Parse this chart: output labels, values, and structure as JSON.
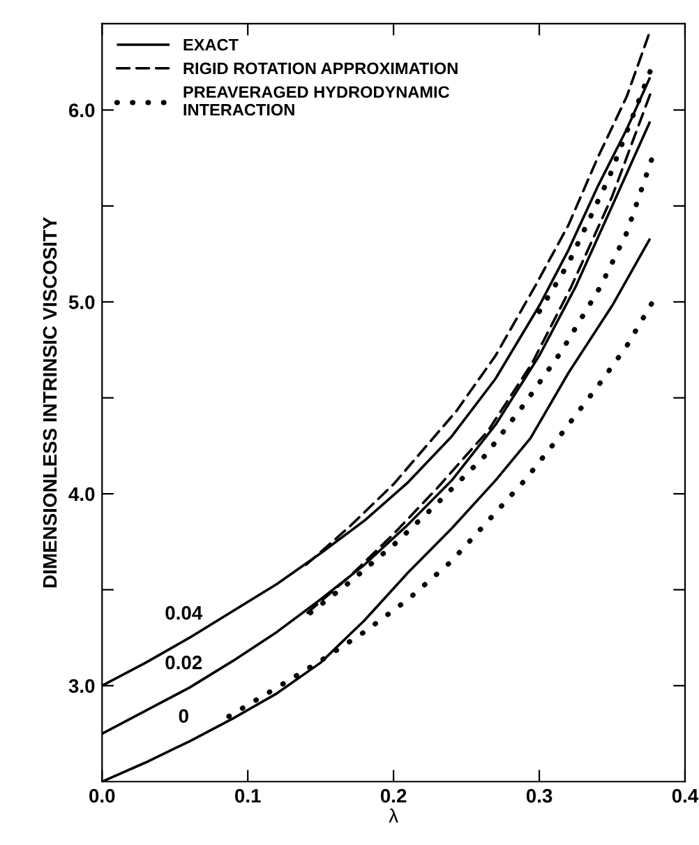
{
  "chart_data": {
    "type": "line",
    "xlabel": "λ",
    "ylabel": "DIMENSIONLESS INTRINSIC VISCOSITY",
    "xlim": [
      0.0,
      0.4
    ],
    "ylim": [
      2.5,
      6.45
    ],
    "xticks": [
      {
        "value": 0.0,
        "label": "0.0"
      },
      0.1,
      0.2,
      0.3,
      0.4
    ],
    "yticks": [
      {
        "value": 3.0,
        "label": "3.0"
      },
      {
        "value": 3.5,
        "label": null
      },
      {
        "value": 4.0,
        "label": "4.0"
      },
      {
        "value": 4.5,
        "label": null
      },
      {
        "value": 5.0,
        "label": "5.0"
      },
      {
        "value": 5.5,
        "label": null
      },
      {
        "value": 6.0,
        "label": "6.0"
      }
    ],
    "grid": false,
    "legend": "top left",
    "marker": "none",
    "series": [
      {
        "name": "EXACT",
        "color": "#000000",
        "line_style": "solid",
        "x": [
          0.0,
          0.03,
          0.06,
          0.09,
          0.12,
          0.15,
          0.18,
          0.21,
          0.24,
          0.27,
          0.3,
          0.32,
          0.34,
          0.36,
          0.376
        ],
        "values": [
          3.0,
          3.12,
          3.25,
          3.39,
          3.53,
          3.69,
          3.86,
          4.06,
          4.3,
          4.6,
          4.98,
          5.27,
          5.6,
          5.9,
          6.17
        ]
      },
      {
        "color": "#000000",
        "line_style": "solid",
        "x": [
          0.0,
          0.03,
          0.06,
          0.09,
          0.12,
          0.15,
          0.18,
          0.21,
          0.24,
          0.27,
          0.3,
          0.325,
          0.35,
          0.376
        ],
        "values": [
          2.75,
          2.87,
          2.99,
          3.13,
          3.28,
          3.45,
          3.63,
          3.84,
          4.07,
          4.36,
          4.72,
          5.08,
          5.5,
          5.94
        ]
      },
      {
        "color": "#000000",
        "line_style": "solid",
        "x": [
          0.0,
          0.03,
          0.06,
          0.09,
          0.12,
          0.15,
          0.18,
          0.21,
          0.24,
          0.27,
          0.294,
          0.32,
          0.35,
          0.376
        ],
        "values": [
          2.5,
          2.6,
          2.71,
          2.83,
          2.96,
          3.12,
          3.34,
          3.59,
          3.82,
          4.07,
          4.29,
          4.63,
          4.98,
          5.33
        ]
      },
      {
        "name": "RIGID ROTATION APPROXIMATION",
        "color": "#000000",
        "line_style": "dashed",
        "x": [
          0.14,
          0.17,
          0.2,
          0.243,
          0.27,
          0.297,
          0.32,
          0.34,
          0.36,
          0.375
        ],
        "values": [
          3.63,
          3.83,
          4.05,
          4.43,
          4.72,
          5.08,
          5.4,
          5.75,
          6.07,
          6.39
        ]
      },
      {
        "color": "#000000",
        "line_style": "dashed",
        "x": [
          0.141,
          0.17,
          0.2,
          0.23,
          0.265,
          0.295,
          0.322,
          0.35,
          0.376
        ],
        "values": [
          3.38,
          3.57,
          3.79,
          4.03,
          4.33,
          4.68,
          5.08,
          5.55,
          6.08
        ]
      },
      {
        "name": "PREAVERAGED HYDRODYNAMIC\nINTERACTION",
        "color": "#000000",
        "line_style": "dotted",
        "x": [
          0.3,
          0.32,
          0.348,
          0.376
        ],
        "values": [
          4.95,
          5.2,
          5.65,
          6.2
        ]
      },
      {
        "color": "#000000",
        "line_style": "dotted",
        "x": [
          0.143,
          0.17,
          0.201,
          0.23,
          0.263,
          0.29,
          0.315,
          0.342,
          0.36,
          0.377
        ],
        "values": [
          3.38,
          3.54,
          3.74,
          3.95,
          4.2,
          4.47,
          4.74,
          5.08,
          5.36,
          5.74
        ]
      },
      {
        "color": "#000000",
        "line_style": "dotted",
        "x": [
          0.087,
          0.12,
          0.15,
          0.18,
          0.21,
          0.24,
          0.265,
          0.29,
          0.313,
          0.342,
          0.36,
          0.377
        ],
        "values": [
          2.84,
          2.99,
          3.13,
          3.28,
          3.45,
          3.65,
          3.86,
          4.07,
          4.29,
          4.58,
          4.77,
          4.99
        ]
      }
    ],
    "annotations": [
      "0.04",
      "0.02",
      "0"
    ]
  }
}
